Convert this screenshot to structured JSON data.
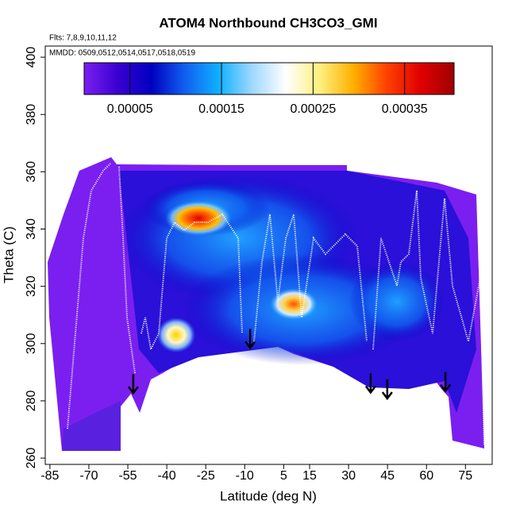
{
  "chart_data": {
    "type": "heatmap",
    "title": "ATOM4 Northbound CH3CO3_GMI",
    "annotations": [
      "Flts: 7,8,9,10,11,12",
      "MMDD: 0509,0512,0514,0517,0518,0519"
    ],
    "x_label": "Latitude (deg N)",
    "y_label": "Theta (C)",
    "xlim": [
      -86.8,
      85.3
    ],
    "xticks": [
      -85,
      -70,
      -55,
      -40,
      -25,
      -10,
      5,
      15,
      30,
      45,
      60,
      75
    ],
    "ylim": [
      257.8,
      403.9
    ],
    "yticks": [
      260,
      280,
      300,
      320,
      340,
      360,
      380,
      400
    ],
    "colorbar": {
      "lim": [
        0,
        0.000404
      ],
      "ticks": [
        {
          "value": 5e-05,
          "label": "0.00005"
        },
        {
          "value": 0.00015,
          "label": "0.00015"
        },
        {
          "value": 0.00025,
          "label": "0.00025"
        },
        {
          "value": 0.00035,
          "label": "0.00035"
        }
      ],
      "colors": [
        "#7a1ff0",
        "#3a00d0",
        "#0000c0",
        "#1060f0",
        "#10b0ff",
        "#a0d8ff",
        "#ffffff",
        "#fff080",
        "#ffb000",
        "#ff4000",
        "#e00000",
        "#a00000"
      ]
    },
    "arrows": {
      "x": [
        -52.9,
        -7.9,
        38.5,
        44.9,
        67.3
      ],
      "y": [
        282.7,
        298.5,
        282.9,
        280.8,
        283.4
      ]
    }
  }
}
